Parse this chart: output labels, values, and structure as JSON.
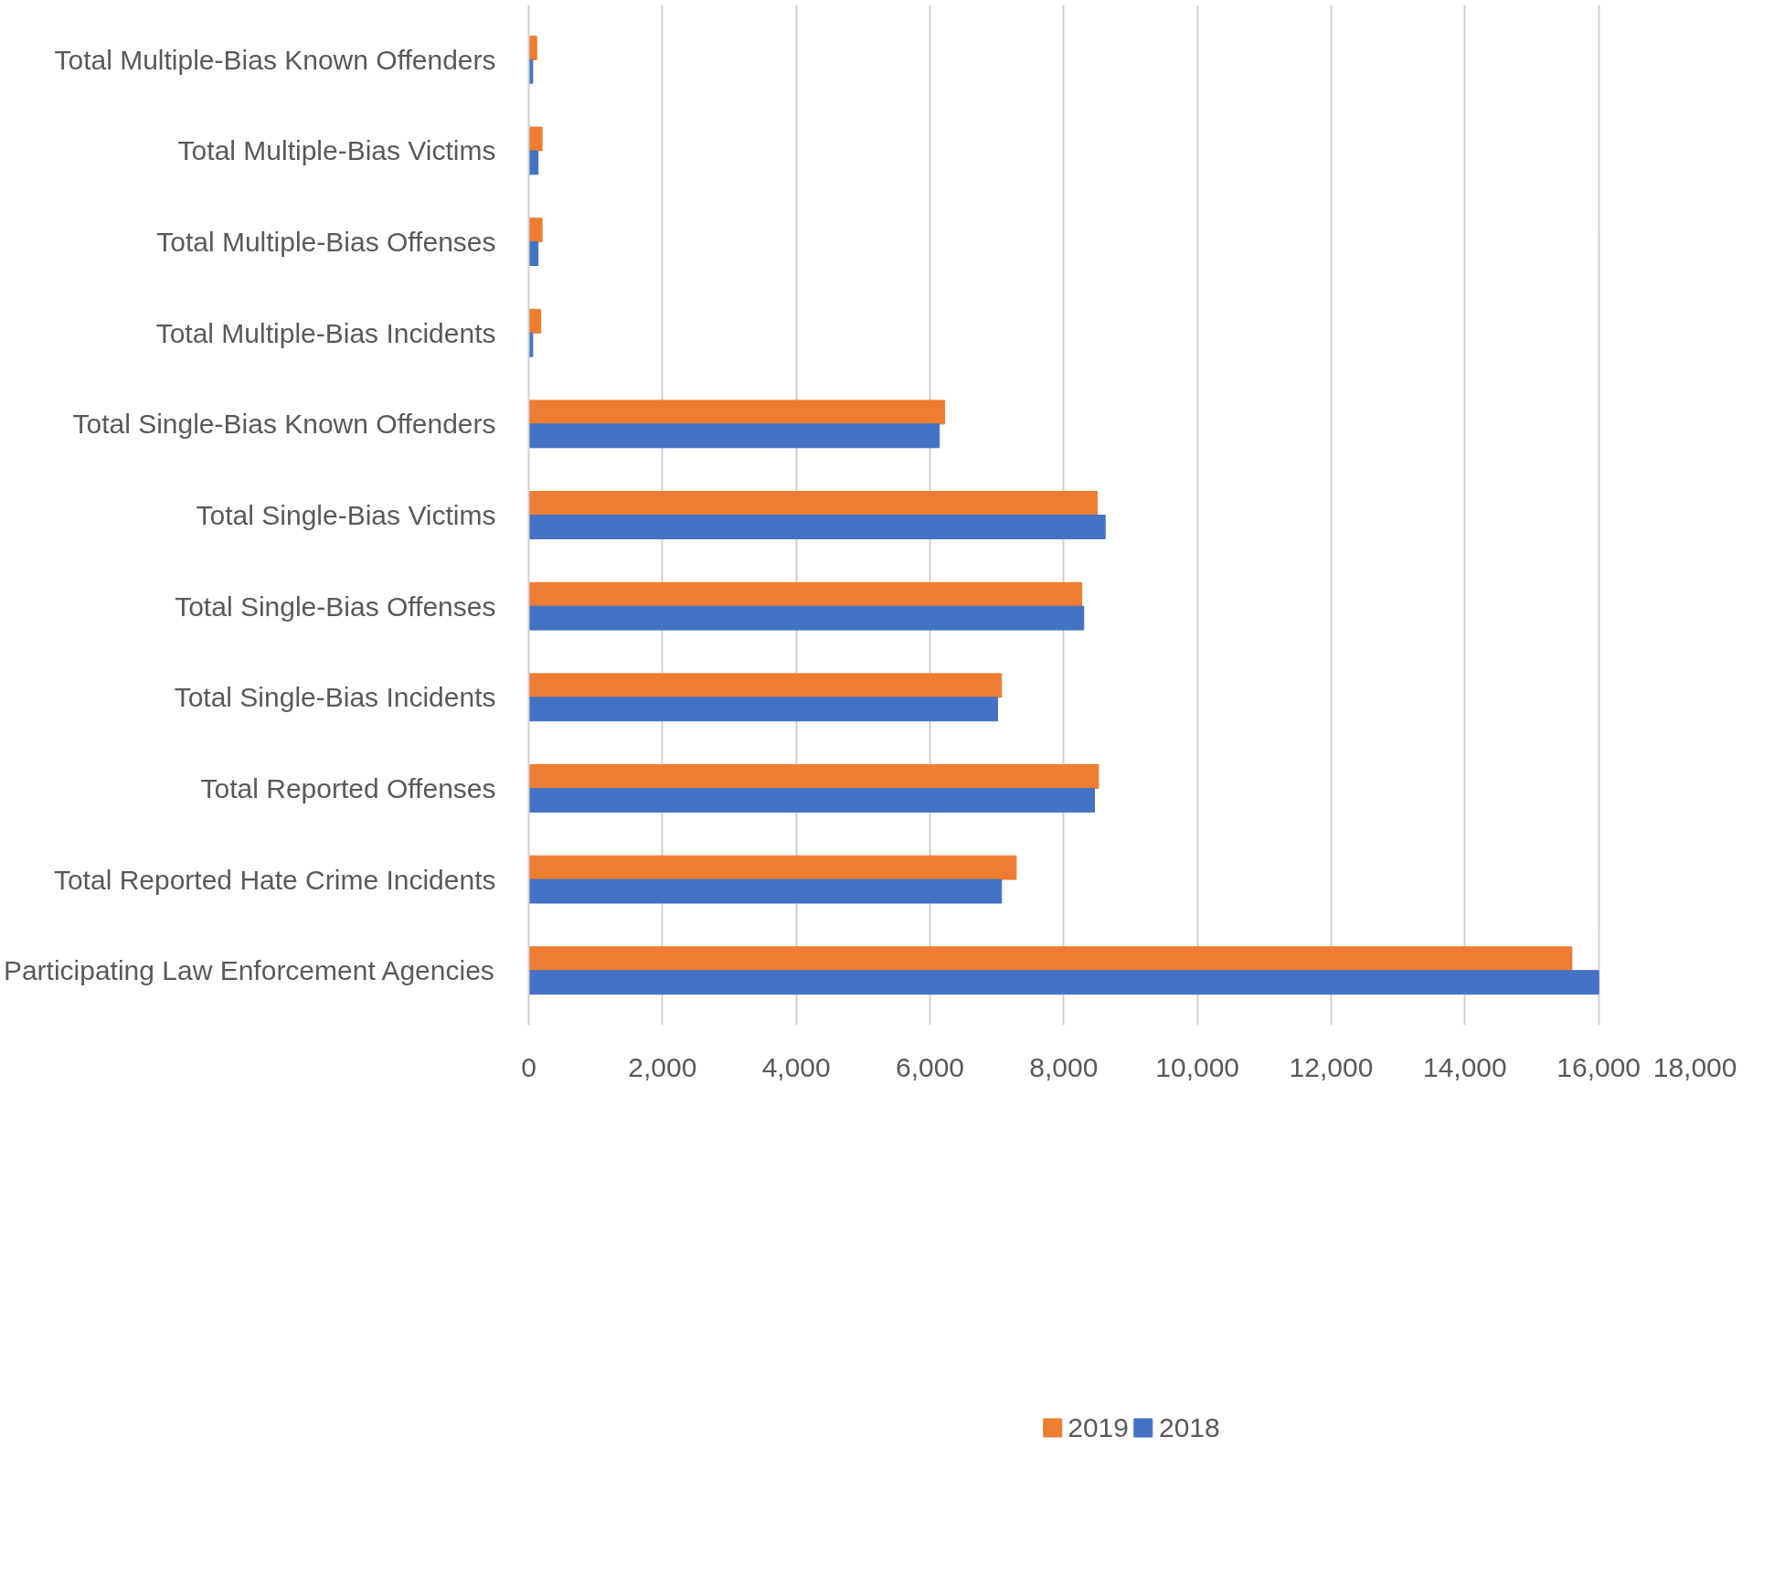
{
  "chart_data": {
    "type": "bar",
    "orientation": "horizontal",
    "categories": [
      "Total Multiple-Bias Known Offenders",
      "Total Multiple-Bias Victims",
      "Total Multiple-Bias Offenses",
      "Total Multiple-Bias Incidents",
      "Total Single-Bias Known Offenders",
      "Total Single-Bias Victims",
      "Total Single-Bias Offenses",
      "Total Single-Bias Incidents",
      "Total Reported Offenses",
      "Total Reported Hate Crime Incidents",
      "Participating Law Enforcement Agencies"
    ],
    "series": [
      {
        "name": "2019",
        "color": "#ed7d31",
        "values": [
          120,
          200,
          200,
          180,
          6220,
          8500,
          8270,
          7070,
          8520,
          7290,
          15600
        ]
      },
      {
        "name": "2018",
        "color": "#4472c4",
        "values": [
          60,
          140,
          140,
          60,
          6140,
          8620,
          8300,
          7010,
          8460,
          7070,
          16000
        ]
      }
    ],
    "xlim": [
      0,
      18000
    ],
    "xticks": [
      0,
      {
        "value": 2000,
        "label": "2,000"
      },
      {
        "value": 4000,
        "label": "4,000"
      },
      {
        "value": 6000,
        "label": "6,000"
      },
      {
        "value": 8000,
        "label": "8,000"
      },
      {
        "value": 10000,
        "label": "10,000"
      },
      {
        "value": 12000,
        "label": "12,000"
      },
      {
        "value": 14000,
        "label": "14,000"
      },
      {
        "value": 16000,
        "label": "16,000"
      },
      {
        "value": 18000,
        "label": "18,000"
      }
    ],
    "grid": "x",
    "legend": "bottom"
  }
}
